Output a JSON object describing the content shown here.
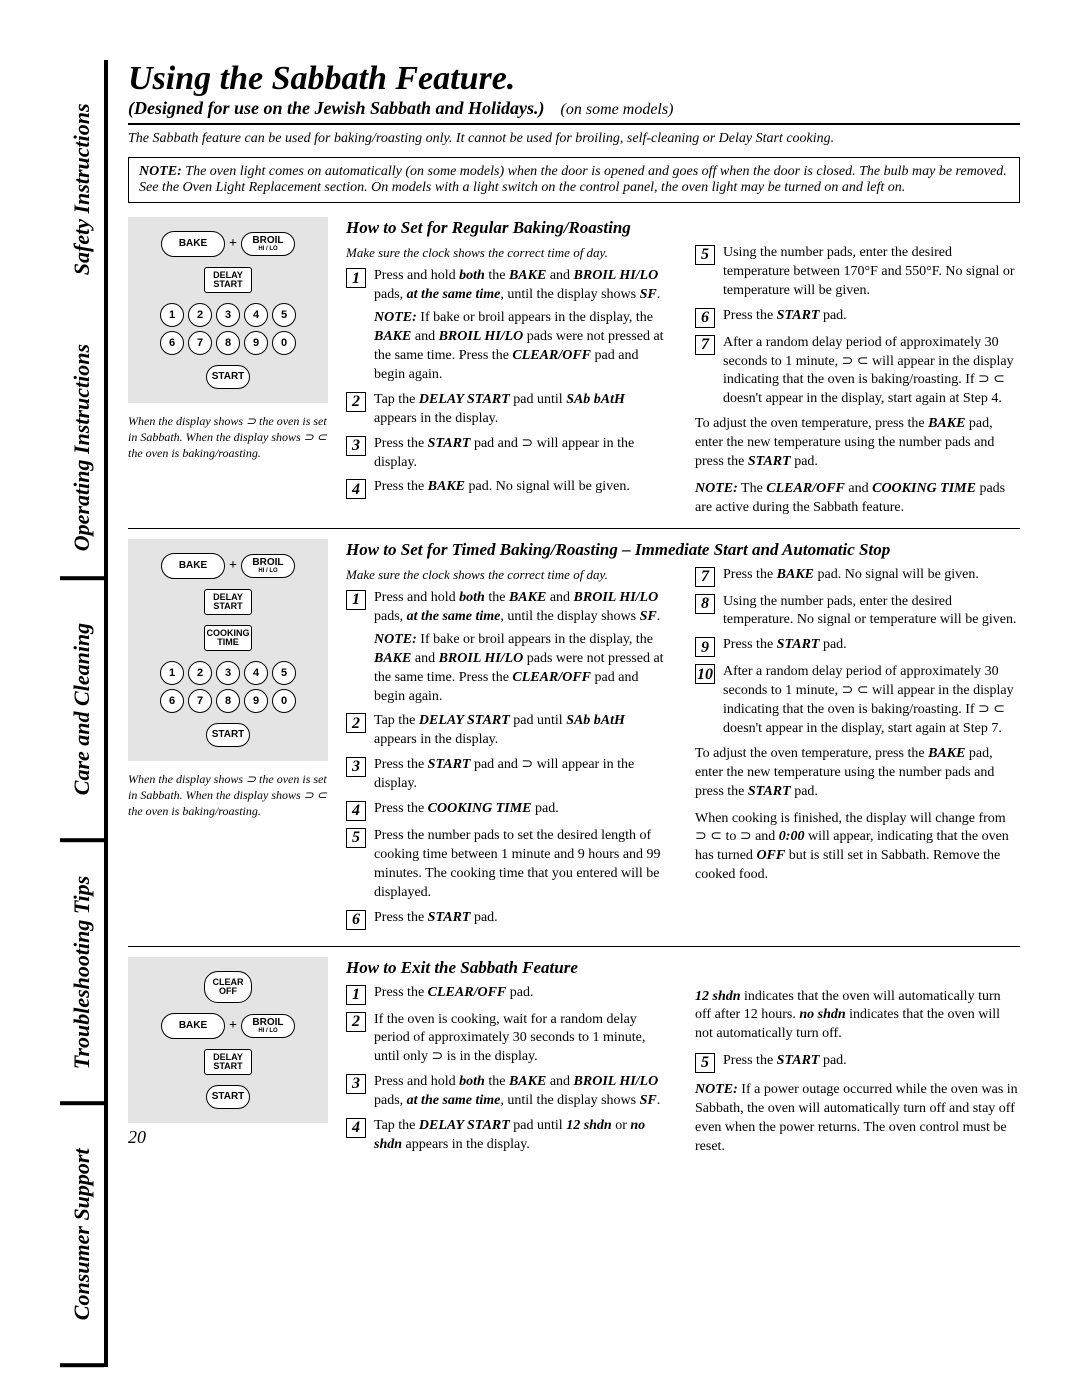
{
  "tabs": [
    "Safety Instructions",
    "Operating Instructions",
    "Care and Cleaning",
    "Troubleshooting Tips",
    "Consumer Support"
  ],
  "title": "Using the Sabbath Feature.",
  "subtitle": "(Designed for use on the Jewish Sabbath and Holidays.)",
  "subtitle_extra": "(on some models)",
  "intro": "The Sabbath feature can be used for baking/roasting only. It cannot be used for broiling, self-cleaning or Delay Start cooking.",
  "note_box_prefix": "NOTE:",
  "note_box": "The oven light comes on automatically (on some models) when the door is opened and goes off when the door is closed. The bulb may be removed. See the Oven Light Replacement section. On models with a light switch on the control panel, the oven light may be turned on and left on.",
  "buttons": {
    "bake": "BAKE",
    "broil": "BROIL",
    "broil_sub": "HI / LO",
    "delay_start": "DELAY\nSTART",
    "cooking_time": "COOKING\nTIME",
    "start": "START",
    "clear_off": "CLEAR\nOFF"
  },
  "panel_caption": "When the display shows ⊃ the oven is set in Sabbath. When the display shows ⊃ ⊂ the oven is baking/roasting.",
  "section1": {
    "title": "How to Set for Regular Baking/Roasting",
    "clock_note": "Make sure the clock shows the correct time of day.",
    "left": [
      {
        "n": "1",
        "html": "Press and hold <b><i>both</i></b> the <b><i>BAKE</i></b> and <b><i>BROIL HI/LO</i></b> pads, <b><i>at the same time</i></b>, until the display shows <b><i>SF</i></b>.<span class='sub-note'><b><i>NOTE:</i></b> If bake or broil appears in the display, the <b><i>BAKE</i></b> and <b><i>BROIL HI/LO</i></b> pads were not pressed at the same time. Press the <b><i>CLEAR/OFF</i></b> pad and begin again.</span>"
      },
      {
        "n": "2",
        "html": "Tap the <b><i>DELAY START</i></b> pad until <b><i>SAb bAtH</i></b> appears in the display."
      },
      {
        "n": "3",
        "html": "Press the <b><i>START</i></b> pad and ⊃ will appear in the display."
      },
      {
        "n": "4",
        "html": "Press the <b><i>BAKE</i></b> pad. No signal will be given."
      }
    ],
    "right": [
      {
        "n": "5",
        "html": "Using the number pads, enter the desired temperature between 170°F and 550°F. No signal or temperature will be given."
      },
      {
        "n": "6",
        "html": "Press the <b><i>START</i></b> pad."
      },
      {
        "n": "7",
        "html": "After a random delay period of approximately 30 seconds to 1 minute, ⊃ ⊂ will appear in the display indicating that the oven is baking/roasting. If ⊃ ⊂ doesn't appear in the display, start again at Step 4."
      }
    ],
    "adjust": "To adjust the oven temperature, press the <b><i>BAKE</i></b> pad, enter the new temperature using the number pads and press the <b><i>START</i></b> pad.",
    "footnote": "<b><i>NOTE:</i></b> The <b><i>CLEAR/OFF</i></b> and <b><i>COOKING TIME</i></b> pads are active during the Sabbath feature."
  },
  "section2": {
    "title": "How to Set for Timed Baking/Roasting – Immediate Start and Automatic Stop",
    "clock_note": "Make sure the clock shows the correct time of day.",
    "left": [
      {
        "n": "1",
        "html": "Press and hold <b><i>both</i></b> the <b><i>BAKE</i></b> and <b><i>BROIL HI/LO</i></b> pads, <b><i>at the same time</i></b>, until the display shows <b><i>SF</i></b>.<span class='sub-note'><b><i>NOTE:</i></b> If bake or broil appears in the display, the <b><i>BAKE</i></b> and <b><i>BROIL HI/LO</i></b> pads were not pressed at the same time. Press the <b><i>CLEAR/OFF</i></b> pad and begin again.</span>"
      },
      {
        "n": "2",
        "html": "Tap the <b><i>DELAY START</i></b> pad until <b><i>SAb bAtH</i></b> appears in the display."
      },
      {
        "n": "3",
        "html": "Press the <b><i>START</i></b> pad and ⊃ will appear in the display."
      },
      {
        "n": "4",
        "html": "Press the <b><i>COOKING TIME</i></b> pad."
      },
      {
        "n": "5",
        "html": "Press the number pads to set the desired length of cooking time between 1 minute and 9 hours and 99 minutes. The cooking time that you entered will be displayed."
      },
      {
        "n": "6",
        "html": "Press the <b><i>START</i></b> pad."
      }
    ],
    "right": [
      {
        "n": "7",
        "html": "Press the <b><i>BAKE</i></b> pad. No signal will be given."
      },
      {
        "n": "8",
        "html": "Using the number pads, enter the desired temperature. No signal or temperature will be given."
      },
      {
        "n": "9",
        "html": "Press the <b><i>START</i></b> pad."
      },
      {
        "n": "10",
        "html": "After a random delay period of approximately 30 seconds to 1 minute, ⊃ ⊂ will appear in the display indicating that the oven is baking/roasting. If ⊃ ⊂ doesn't appear in the display, start again at Step 7."
      }
    ],
    "adjust": "To adjust the oven temperature, press the <b><i>BAKE</i></b> pad, enter the new temperature using the number pads and press the <b><i>START</i></b> pad.",
    "footnote": "When cooking is finished, the display will change from ⊃ ⊂ to ⊃ and <b><i>0:00</i></b> will appear, indicating that the oven has turned <b><i>OFF</i></b> but is still set in Sabbath. Remove the cooked food."
  },
  "section3": {
    "title": "How to Exit the Sabbath Feature",
    "left": [
      {
        "n": "1",
        "html": "Press the <b><i>CLEAR/OFF</i></b> pad."
      },
      {
        "n": "2",
        "html": "If the oven is cooking, wait for a random delay period of approximately 30 seconds to 1 minute, until only ⊃ is in the display."
      },
      {
        "n": "3",
        "html": "Press and hold <b><i>both</i></b> the <b><i>BAKE</i></b> and <b><i>BROIL HI/LO</i></b> pads, <b><i>at the same time</i></b>, until the display shows <b><i>SF</i></b>."
      },
      {
        "n": "4",
        "html": "Tap the <b><i>DELAY START</i></b> pad until <b><i>12 shdn</i></b> or <b><i>no shdn</i></b> appears in the display."
      }
    ],
    "right_pre": "<b><i>12 shdn</i></b> indicates that the oven will automatically turn off after 12 hours. <b><i>no shdn</i></b> indicates that the oven will not automatically turn off.",
    "right": [
      {
        "n": "5",
        "html": "Press the <b><i>START</i></b> pad."
      }
    ],
    "footnote": "<b><i>NOTE:</i></b> If a power outage occurred while the oven was in Sabbath, the oven will automatically turn off and stay off even when the power returns. The oven control must be reset."
  },
  "page_num": "20"
}
